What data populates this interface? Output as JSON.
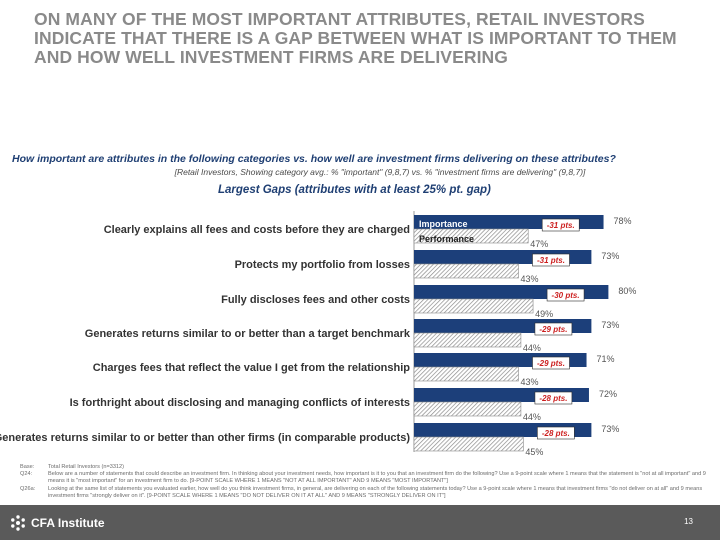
{
  "slide": {
    "headline": "ON MANY OF THE MOST IMPORTANT ATTRIBUTES, RETAIL INVESTORS INDICATE THAT THERE IS A GAP BETWEEN WHAT IS IMPORTANT TO THEM AND HOW WELL INVESTMENT FIRMS ARE DELIVERING",
    "question": "How important are attributes in the following categories vs. how well are investment firms delivering on these attributes?",
    "subquestion": "[Retail Investors, Showing category avg.: % \"important\" (9,8,7) vs. % \"investment firms are delivering\" (9,8,7)]",
    "chart_title": "Largest Gaps (attributes with at least 25% pt. gap)",
    "page_number": "13"
  },
  "chart_data": {
    "type": "bar",
    "orientation": "horizontal",
    "title": "Largest Gaps (attributes with at least 25% pt. gap)",
    "xlim": [
      0,
      100
    ],
    "legend": [
      "Importance",
      "Performance"
    ],
    "legend_position": "top",
    "categories": [
      "Clearly explains all fees and costs before they are charged",
      "Protects my portfolio from losses",
      "Fully discloses fees and other costs",
      "Generates returns similar to or better than a target benchmark",
      "Charges fees that reflect the value I get from the relationship",
      "Is forthright about disclosing and managing conflicts of interests",
      "Generates returns similar to or better than other firms (in comparable products)"
    ],
    "series": [
      {
        "name": "Importance",
        "values": [
          78,
          73,
          80,
          73,
          71,
          72,
          73
        ],
        "labels": [
          "78%",
          "73%",
          "80%",
          "73%",
          "71%",
          "72%",
          "73%"
        ]
      },
      {
        "name": "Performance",
        "values": [
          47,
          43,
          49,
          44,
          43,
          44,
          45
        ],
        "labels": [
          "47%",
          "43%",
          "49%",
          "44%",
          "43%",
          "44%",
          "45%"
        ]
      }
    ],
    "gap_labels": [
      "-31 pts.",
      "-31 pts.",
      "-30 pts.",
      "-29 pts.",
      "-29 pts.",
      "-28 pts.",
      "-28 pts."
    ]
  },
  "notes": [
    {
      "key": "Base:",
      "text": "Total Retail Investors (n=3312)"
    },
    {
      "key": "Q24:",
      "text": "Below are a number of statements that could describe an investment firm. In thinking about your investment needs, how important is it to you that an investment firm do the following? Use a 9-point scale where 1 means that the statement is \"not at all important\" and 9 means it is \"most important\" for an investment firm to do. [9-POINT SCALE WHERE 1 MEANS \"NOT AT ALL IMPORTANT\" AND 9 MEANS \"MOST IMPORTANT\"]"
    },
    {
      "key": "Q26a:",
      "text": "Looking at the same list of statements you evaluated earlier, how well do you think investment firms, in general, are delivering on each of the following statements today? Use a 9-point scale where 1 means that investment firms \"do not deliver on at all\" and 9 means investment firms \"strongly deliver on it\". [9-POINT SCALE WHERE 1 MEANS \"DO NOT DELIVER ON IT AT ALL\" AND 9 MEANS \"STRONGLY DELIVER ON IT\"]"
    }
  ],
  "footer": {
    "logo_text": "CFA Institute"
  },
  "colors": {
    "importance": "#1c3f7a",
    "performance_stripe": "#9a9a9a",
    "gap_red": "#cc1f1f",
    "footer": "#5a5a5a"
  }
}
